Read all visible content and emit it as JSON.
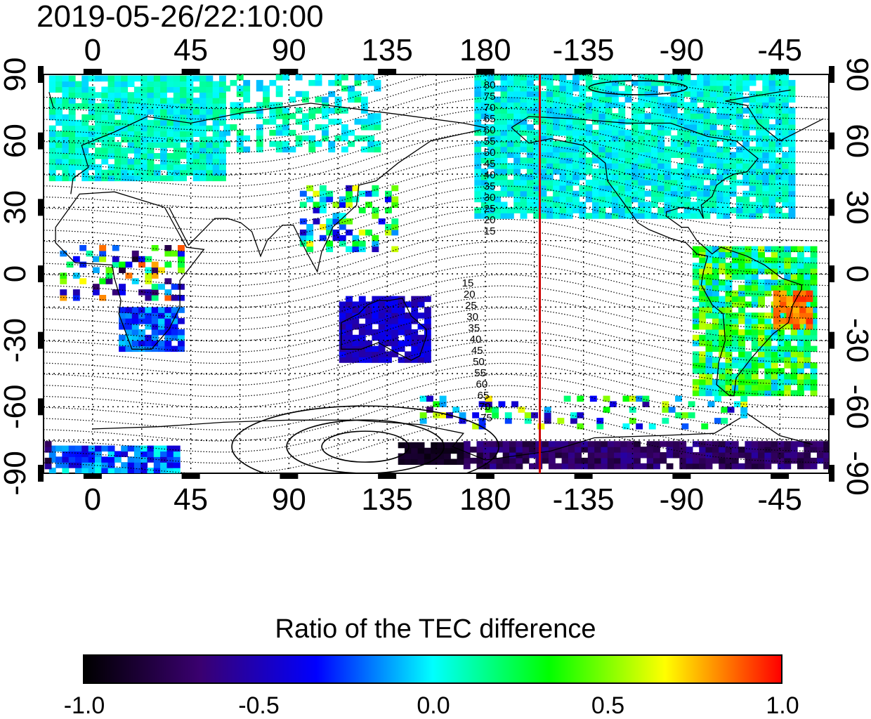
{
  "timestamp": "2019-05-26/22:10:00",
  "map": {
    "longitude_ticks": [
      "0",
      "45",
      "90",
      "135",
      "180",
      "-135",
      "-90",
      "-45"
    ],
    "latitude_ticks": [
      "90",
      "60",
      "30",
      "0",
      "-30",
      "-60",
      "-90"
    ],
    "magnetic_latitude_labels_north": [
      "80",
      "75",
      "70",
      "65",
      "60",
      "55",
      "50",
      "45",
      "40",
      "35",
      "30",
      "25",
      "20",
      "15"
    ],
    "magnetic_latitude_labels_south": [
      "15",
      "20",
      "25",
      "30",
      "35",
      "40",
      "45",
      "50",
      "55",
      "60",
      "65",
      "70",
      "75"
    ],
    "terminator_longitude_label": "-155",
    "terminator_color": "#cc0000"
  },
  "colorbar": {
    "title": "Ratio of the TEC difference",
    "tick_labels": [
      "-1.0",
      "-0.5",
      "0.0",
      "0.5",
      "1.0"
    ],
    "range": [
      -1.0,
      1.0
    ],
    "colors": [
      "#000000",
      "#3a0070",
      "#0000ff",
      "#00ffff",
      "#00ff00",
      "#ffff00",
      "#ff0000"
    ]
  }
}
